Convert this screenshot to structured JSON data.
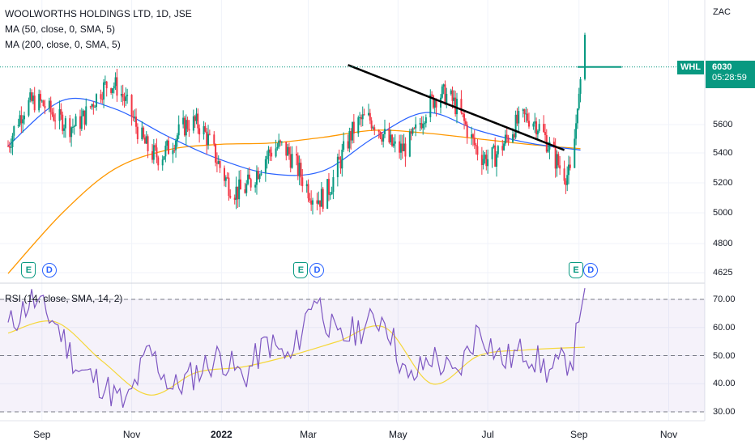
{
  "legend": {
    "title": "WOOLWORTHS HOLDINGS LTD, 1D, JSE",
    "ma50": "MA (50, close, 0, SMA, 5)",
    "ma200": "MA (200, close, 0, SMA, 5)",
    "rsi": "RSI (14, close, SMA, 14, 2)"
  },
  "price_panel": {
    "unit": "ZAC",
    "symbol": "WHL",
    "last_price": "6030",
    "countdown": "05:28:59"
  },
  "colors": {
    "up": "#089981",
    "down": "#f23645",
    "ma50": "#2962ff",
    "ma200": "#ff9800",
    "rsi": "#7e57c2",
    "rsi_ma": "#f5d73b",
    "trendline": "#000000",
    "price_line": "#089981"
  },
  "chart_data": [
    {
      "type": "candlestick",
      "x_ticks": [
        "Sep",
        "Nov",
        "2022",
        "Mar",
        "May",
        "Jul",
        "Sep",
        "Nov"
      ],
      "y_ticks": [
        "4625",
        "4800",
        "5000",
        "5200",
        "5400",
        "5600"
      ],
      "ylim": [
        4600,
        6500
      ],
      "grid": true,
      "trendline": {
        "from": {
          "x": "2022-03-28",
          "y": 6045
        },
        "to": {
          "x": "2022-08-22",
          "y": 5420
        }
      },
      "last_price": 6030,
      "events": [
        {
          "type": "E",
          "x": "2021-08-23"
        },
        {
          "type": "D",
          "x": "2021-09-06"
        },
        {
          "type": "E",
          "x": "2022-02-24"
        },
        {
          "type": "D",
          "x": "2022-03-07"
        },
        {
          "type": "E",
          "x": "2022-08-30"
        },
        {
          "type": "D",
          "x": "2022-09-09"
        }
      ],
      "series": [
        {
          "name": "MA (50, close, 0, SMA, 5)",
          "x": [
            "2021-08-09",
            "2021-09-15",
            "2021-10-20",
            "2021-11-25",
            "2021-12-30",
            "2022-02-04",
            "2022-03-11",
            "2022-04-15",
            "2022-05-20",
            "2022-06-24",
            "2022-07-29",
            "2022-09-02"
          ],
          "values": [
            5450,
            5780,
            5720,
            5520,
            5360,
            5260,
            5280,
            5510,
            5690,
            5560,
            5470,
            5420
          ]
        },
        {
          "name": "MA (200, close, 0, SMA, 5)",
          "x": [
            "2021-08-09",
            "2021-09-15",
            "2021-10-20",
            "2021-11-25",
            "2021-12-30",
            "2022-02-04",
            "2022-03-11",
            "2022-04-15",
            "2022-05-20",
            "2022-06-24",
            "2022-07-29",
            "2022-09-02"
          ],
          "values": [
            4620,
            5000,
            5290,
            5420,
            5460,
            5470,
            5510,
            5560,
            5540,
            5500,
            5460,
            5430
          ]
        }
      ]
    },
    {
      "type": "line",
      "title": "RSI (14, close, SMA, 14, 2)",
      "y_ticks": [
        "30.00",
        "40.00",
        "50.00",
        "60.00",
        "70.00"
      ],
      "ylim": [
        28,
        77
      ],
      "bands": [
        70,
        50,
        30
      ],
      "series": [
        {
          "name": "RSI",
          "x": [
            "2021-08-09",
            "2021-08-25",
            "2021-09-10",
            "2021-09-26",
            "2021-10-12",
            "2021-10-28",
            "2021-11-13",
            "2021-11-29",
            "2021-12-15",
            "2021-12-31",
            "2022-01-16",
            "2022-02-01",
            "2022-02-17",
            "2022-03-05",
            "2022-03-21",
            "2022-04-06",
            "2022-04-22",
            "2022-05-08",
            "2022-05-24",
            "2022-06-09",
            "2022-06-25",
            "2022-07-11",
            "2022-07-27",
            "2022-08-12",
            "2022-08-28",
            "2022-09-05"
          ],
          "values": [
            60,
            70,
            62,
            45,
            40,
            32,
            52,
            38,
            44,
            50,
            42,
            55,
            48,
            72,
            55,
            60,
            64,
            40,
            50,
            42,
            60,
            48,
            52,
            44,
            50,
            74
          ]
        },
        {
          "name": "RSI MA",
          "x": [
            "2021-08-09",
            "2021-09-10",
            "2021-10-12",
            "2021-11-13",
            "2021-12-15",
            "2022-01-16",
            "2022-02-17",
            "2022-03-21",
            "2022-04-22",
            "2022-05-24",
            "2022-06-25",
            "2022-07-27",
            "2022-09-05"
          ],
          "values": [
            58,
            62,
            48,
            36,
            44,
            46,
            50,
            55,
            60,
            40,
            50,
            52,
            53
          ]
        }
      ]
    }
  ]
}
